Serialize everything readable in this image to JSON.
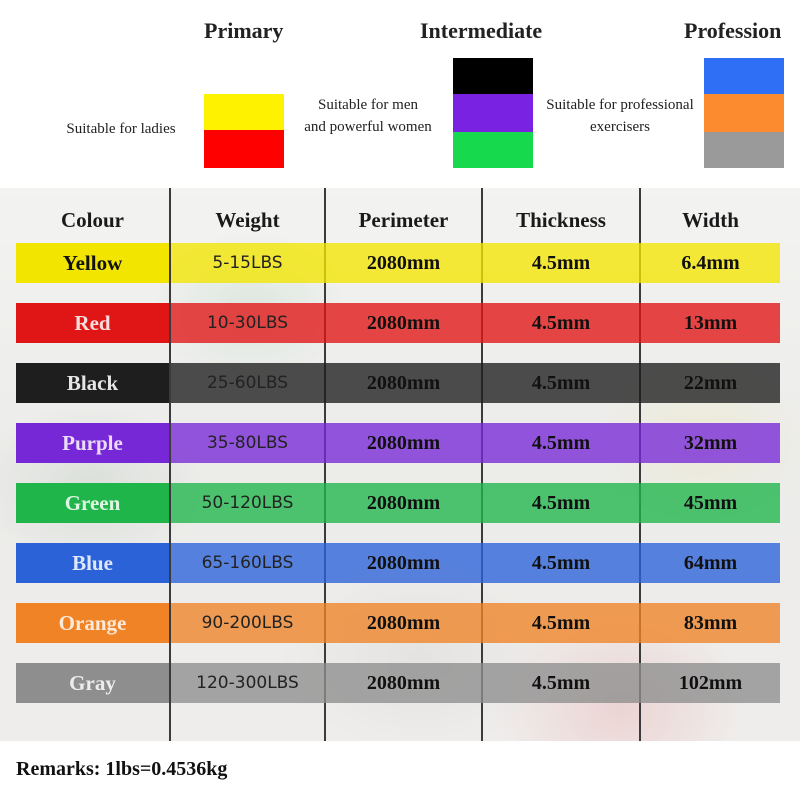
{
  "levels": [
    {
      "title": "Primary",
      "description_lines": [
        "Suitable for ladies"
      ],
      "swatches": [
        "#fff200",
        "#ff0000"
      ]
    },
    {
      "title": "Intermediate",
      "description_lines": [
        "Suitable for men",
        "and powerful women"
      ],
      "swatches": [
        "#000000",
        "#7a22e2",
        "#17d94d"
      ]
    },
    {
      "title": "Profession",
      "description_lines": [
        "Suitable for professional",
        "exercisers"
      ],
      "swatches": [
        "#2f6ff5",
        "#fc8a2e",
        "#9a9a9a"
      ]
    }
  ],
  "table": {
    "headers": [
      "Colour",
      "Weight",
      "Perimeter",
      "Thickness",
      "Width"
    ],
    "rows": [
      {
        "colour": "Yellow",
        "weight": "5-15LBS",
        "perimeter": "2080mm",
        "thickness": "4.5mm",
        "width": "6.4mm",
        "band_color": "#f2e600",
        "label_color": "#111111"
      },
      {
        "colour": "Red",
        "weight": "10-30LBS",
        "perimeter": "2080mm",
        "thickness": "4.5mm",
        "width": "13mm",
        "band_color": "#e01515",
        "label_color": "#f5dede"
      },
      {
        "colour": "Black",
        "weight": "25-60LBS",
        "perimeter": "2080mm",
        "thickness": "4.5mm",
        "width": "22mm",
        "band_color": "#1e1e1e",
        "label_color": "#e6e6e6"
      },
      {
        "colour": "Purple",
        "weight": "35-80LBS",
        "perimeter": "2080mm",
        "thickness": "4.5mm",
        "width": "32mm",
        "band_color": "#7728d6",
        "label_color": "#eadcf8"
      },
      {
        "colour": "Green",
        "weight": "50-120LBS",
        "perimeter": "2080mm",
        "thickness": "4.5mm",
        "width": "45mm",
        "band_color": "#1fb54a",
        "label_color": "#def5e4"
      },
      {
        "colour": "Blue",
        "weight": "65-160LBS",
        "perimeter": "2080mm",
        "thickness": "4.5mm",
        "width": "64mm",
        "band_color": "#2c62d8",
        "label_color": "#dfe8fb"
      },
      {
        "colour": "Orange",
        "weight": "90-200LBS",
        "perimeter": "2080mm",
        "thickness": "4.5mm",
        "width": "83mm",
        "band_color": "#f08326",
        "label_color": "#fdeadb"
      },
      {
        "colour": "Gray",
        "weight": "120-300LBS",
        "perimeter": "2080mm",
        "thickness": "4.5mm",
        "width": "102mm",
        "band_color": "#8e8e8e",
        "label_color": "#ececec"
      }
    ]
  },
  "remarks": "Remarks: 1lbs=0.4536kg"
}
